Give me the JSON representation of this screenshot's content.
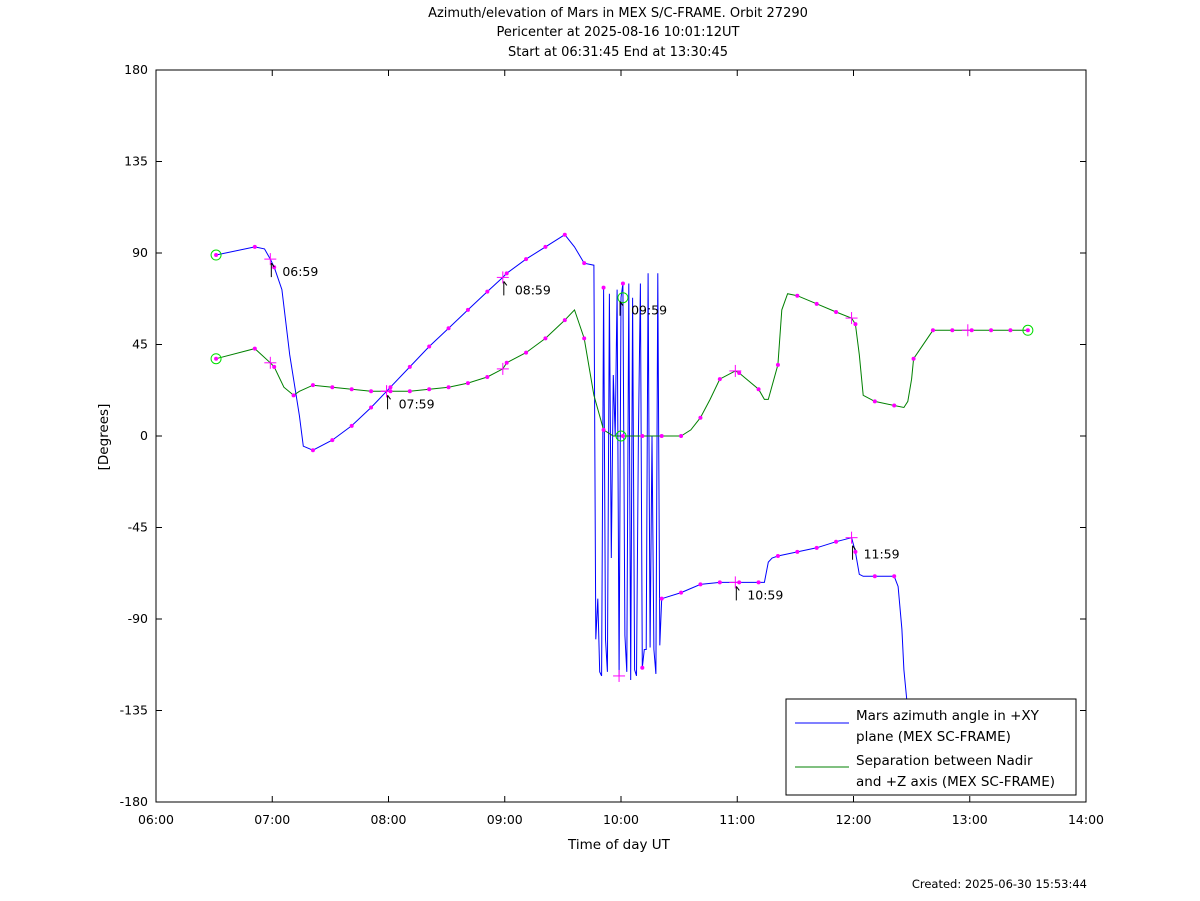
{
  "chart_data": {
    "type": "line",
    "title_lines": [
      "Azimuth/elevation of Mars in MEX S/C-FRAME.  Orbit 27290",
      "Pericenter at 2025-08-16 10:01:12UT",
      "Start at 06:31:45 End at 13:30:45"
    ],
    "xlabel": "Time of day UT",
    "ylabel": "[Degrees]",
    "xlim": [
      "06:00",
      "14:00"
    ],
    "ylim": [
      -180,
      180
    ],
    "xticks": [
      "06:00",
      "07:00",
      "08:00",
      "09:00",
      "10:00",
      "11:00",
      "12:00",
      "13:00",
      "14:00"
    ],
    "yticks": [
      "180",
      "135",
      "90",
      "45",
      "0",
      "-45",
      "-90",
      "-135",
      "-180"
    ],
    "grid": false,
    "legend_position": "bottom-right",
    "series": [
      {
        "name": "Mars azimuth angle in +XY plane (MEX SC-FRAME)",
        "legend_lines": [
          "Mars azimuth angle in +XY",
          "plane (MEX SC-FRAME)"
        ],
        "color": "#0000ff",
        "x": [
          "06:31",
          "06:51",
          "06:56",
          "06:59",
          "07:01",
          "07:05",
          "07:09",
          "07:14",
          "07:16",
          "07:21",
          "07:31",
          "07:41",
          "07:51",
          "07:59",
          "08:01",
          "08:11",
          "08:21",
          "08:31",
          "08:41",
          "08:51",
          "08:59",
          "09:01",
          "09:11",
          "09:21",
          "09:31",
          "09:36",
          "09:41",
          "09:46",
          "09:47",
          "09:48",
          "09:49",
          "09:50",
          "09:51",
          "09:52",
          "09:53",
          "09:54",
          "09:55",
          "09:56",
          "09:57",
          "09:58",
          "09:59",
          "10:00",
          "10:01",
          "10:02",
          "10:03",
          "10:04",
          "10:05",
          "10:06",
          "10:07",
          "10:08",
          "10:09",
          "10:10",
          "10:11",
          "10:12",
          "10:13",
          "10:14",
          "10:15",
          "10:16",
          "10:17",
          "10:18",
          "10:19",
          "10:20",
          "10:21",
          "10:31",
          "10:41",
          "10:51",
          "10:59",
          "11:01",
          "11:11",
          "11:14",
          "11:16",
          "11:18",
          "11:21",
          "11:31",
          "11:41",
          "11:51",
          "11:59",
          "12:01",
          "12:03",
          "12:05",
          "12:11",
          "12:19",
          "12:21",
          "12:23",
          "12:25",
          "12:26",
          "12:28"
        ],
        "y": [
          89,
          93,
          92,
          87,
          83,
          72,
          40,
          10,
          -5,
          -7,
          -2,
          5,
          14,
          22,
          24,
          34,
          44,
          53,
          62,
          71,
          78,
          80,
          87,
          93,
          99,
          93,
          85,
          84,
          -100,
          -80,
          -116,
          -118,
          73,
          -100,
          -116,
          70,
          -60,
          30,
          0,
          72,
          -118,
          68,
          75,
          -98,
          -116,
          75,
          -120,
          68,
          -115,
          -118,
          0,
          75,
          -114,
          -105,
          -105,
          80,
          -104,
          0,
          -105,
          -117,
          80,
          -103,
          -80,
          -77,
          -73,
          -72,
          -72,
          -72,
          -72,
          -72,
          -62,
          -60,
          -59,
          -57,
          -55,
          -52,
          -50,
          -57,
          -68,
          -69,
          -69,
          -69,
          -69,
          -74,
          -95,
          -115,
          -135
        ]
      },
      {
        "name": "Separation between Nadir and +Z axis (MEX SC-FRAME)",
        "legend_lines": [
          "Separation between Nadir",
          "and +Z axis (MEX SC-FRAME)"
        ],
        "color": "#008000",
        "x": [
          "06:31",
          "06:51",
          "06:59",
          "07:01",
          "07:06",
          "07:11",
          "07:14",
          "07:21",
          "07:31",
          "07:41",
          "07:51",
          "07:59",
          "08:01",
          "08:11",
          "08:21",
          "08:31",
          "08:41",
          "08:51",
          "08:59",
          "09:01",
          "09:11",
          "09:21",
          "09:31",
          "09:36",
          "09:41",
          "09:46",
          "09:51",
          "09:56",
          "10:01",
          "10:06",
          "10:11",
          "10:16",
          "10:21",
          "10:26",
          "10:31",
          "10:36",
          "10:41",
          "10:46",
          "10:51",
          "10:59",
          "11:01",
          "11:11",
          "11:14",
          "11:16",
          "11:21",
          "11:23",
          "11:26",
          "11:31",
          "11:41",
          "11:51",
          "11:59",
          "12:01",
          "12:03",
          "12:05",
          "12:11",
          "12:21",
          "12:26",
          "12:28",
          "12:30",
          "12:31",
          "12:41",
          "12:51",
          "12:59",
          "13:01",
          "13:11",
          "13:21",
          "13:30"
        ],
        "y": [
          38,
          43,
          36,
          34,
          24,
          20,
          22,
          25,
          24,
          23,
          22,
          22,
          22,
          22,
          23,
          24,
          26,
          29,
          33,
          36,
          41,
          48,
          57,
          62,
          48,
          20,
          3,
          0,
          0,
          0,
          0,
          0,
          0,
          0,
          0,
          3,
          9,
          18,
          28,
          32,
          31,
          23,
          18,
          18,
          35,
          62,
          70,
          69,
          65,
          61,
          58,
          55,
          40,
          20,
          17,
          15,
          14,
          17,
          28,
          38,
          52,
          52,
          52,
          52,
          52,
          52,
          52
        ]
      }
    ],
    "annotations": [
      "06:59",
      "07:59",
      "08:59",
      "09:59",
      "10:59",
      "11:59"
    ]
  },
  "footer": {
    "created": "Created: 2025-06-30 15:53:44"
  }
}
